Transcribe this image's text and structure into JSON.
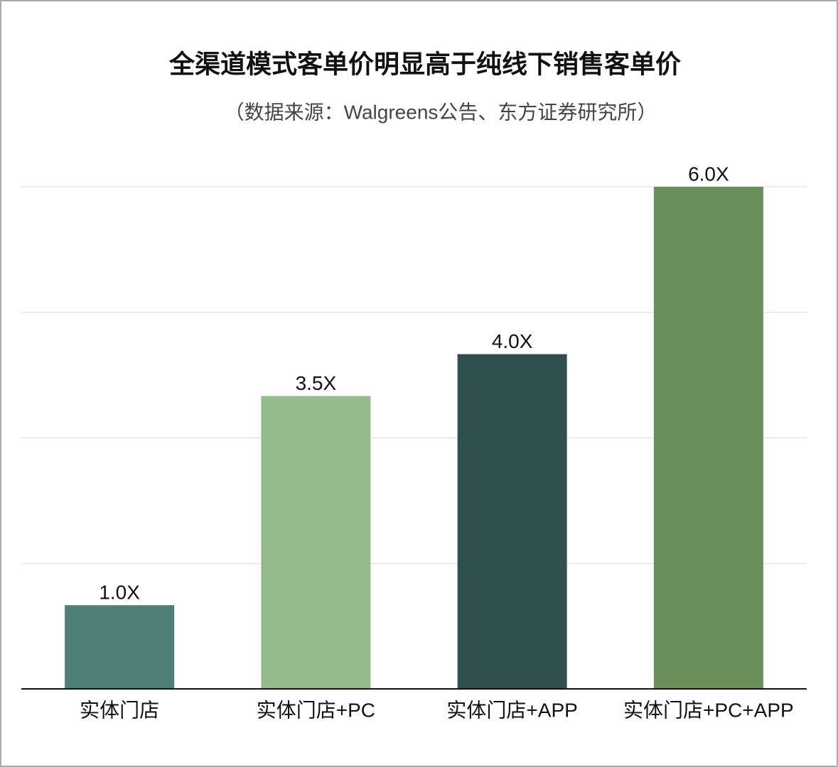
{
  "chart_data": {
    "type": "bar",
    "title": "全渠道模式客单价明显高于纯线下销售客单价",
    "subtitle": "（数据来源：Walgreens公告、东方证券研究所）",
    "categories": [
      "实体门店",
      "实体门店+PC",
      "实体门店+APP",
      "实体门店+PC+APP"
    ],
    "values": [
      1.0,
      3.5,
      4.0,
      6.0
    ],
    "value_labels": [
      "1.0X",
      "3.5X",
      "4.0X",
      "6.0X"
    ],
    "colors": [
      "#4f8078",
      "#95bb8a",
      "#30504e",
      "#6a8f5a"
    ],
    "ylim": [
      0,
      6
    ],
    "yticks": [
      0,
      1.5,
      3,
      4.5,
      6
    ],
    "grid": true
  }
}
